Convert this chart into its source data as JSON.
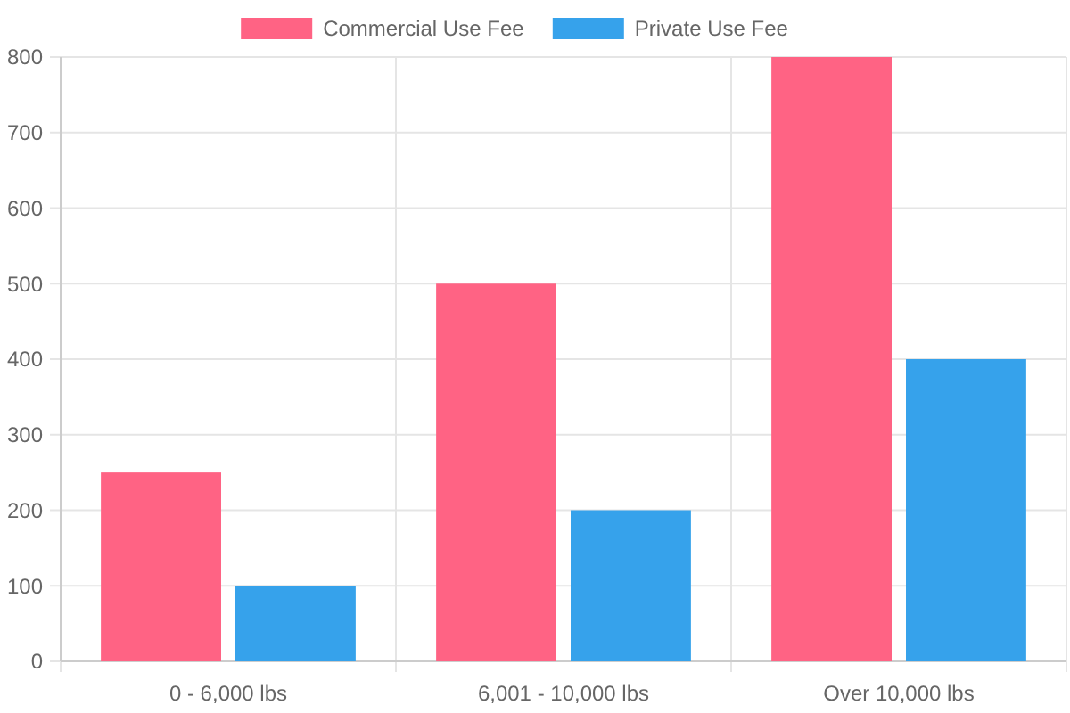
{
  "chart_data": {
    "type": "bar",
    "categories": [
      "0 - 6,000 lbs",
      "6,001 - 10,000 lbs",
      "Over 10,000 lbs"
    ],
    "series": [
      {
        "name": "Commercial Use Fee",
        "color": "#ff6384",
        "values": [
          250,
          500,
          800
        ]
      },
      {
        "name": "Private Use Fee",
        "color": "#36a2eb",
        "values": [
          100,
          200,
          400
        ]
      }
    ],
    "ylim": [
      0,
      800
    ],
    "yticks": [
      0,
      100,
      200,
      300,
      400,
      500,
      600,
      700,
      800
    ],
    "grid": true,
    "legend": "top"
  }
}
